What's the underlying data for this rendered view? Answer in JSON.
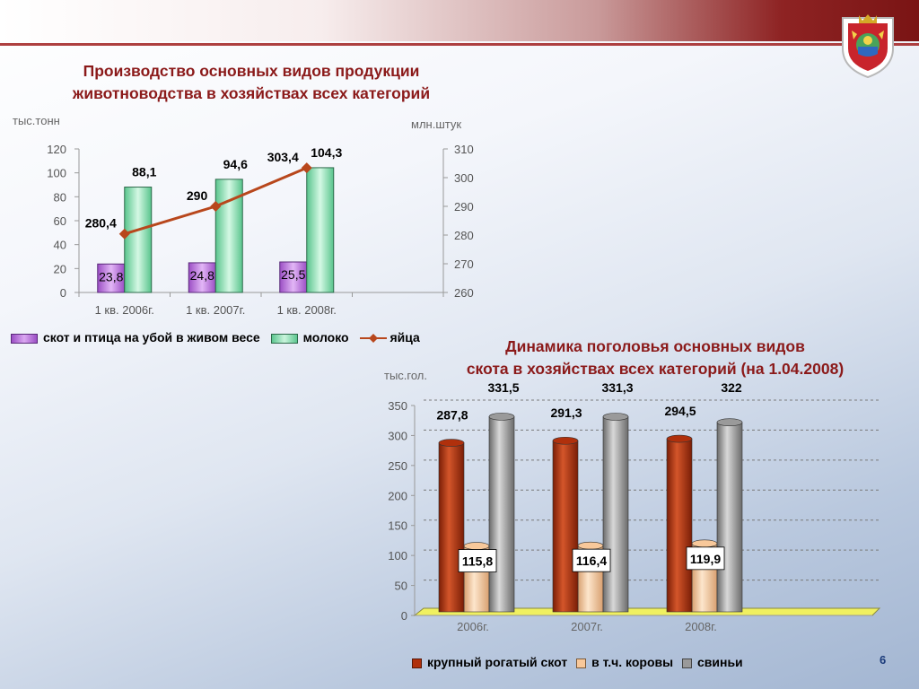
{
  "slide": {
    "page_number": "6"
  },
  "chart_data": [
    {
      "type": "bar",
      "title": "Производство основных видов продукции животноводства в хозяйствах всех категорий",
      "title_lines": [
        "Производство основных видов продукции",
        "животноводства в хозяйствах всех категорий"
      ],
      "ylabel": "тыс.тонн",
      "y2label": "млн.штук",
      "categories": [
        "1 кв. 2006г.",
        "1 кв.  2007г.",
        "1 кв. 2008г."
      ],
      "ylim": [
        0,
        120
      ],
      "yticks": [
        0,
        20,
        40,
        60,
        80,
        100,
        120
      ],
      "y2lim": [
        260,
        310
      ],
      "y2ticks": [
        260,
        270,
        280,
        290,
        300,
        310
      ],
      "series": [
        {
          "name": "скот и птица на убой в живом весе",
          "kind": "bar",
          "axis": "left",
          "color": "#b56fd8",
          "values": [
            23.8,
            24.8,
            25.5
          ],
          "labels": [
            "23,8",
            "24,8",
            "25,5"
          ]
        },
        {
          "name": "молоко",
          "kind": "bar",
          "axis": "left",
          "color": "#8fe0b5",
          "values": [
            88.1,
            94.6,
            104.3
          ],
          "labels": [
            "88,1",
            "94,6",
            "104,3"
          ]
        },
        {
          "name": "яйца",
          "kind": "line",
          "axis": "right",
          "color": "#b8471c",
          "values": [
            280.4,
            290,
            303.4
          ],
          "labels": [
            "280,4",
            "290",
            "303,4"
          ]
        }
      ],
      "legend_position": "bottom"
    },
    {
      "type": "bar",
      "title": "Динамика поголовья основных видов скота в хозяйствах всех категорий (на 1.04.2008)",
      "title_lines": [
        "Динамика поголовья основных видов",
        "скота в хозяйствах всех категорий (на 1.04.2008)"
      ],
      "ylabel": "тыс.гол.",
      "categories": [
        "2006г.",
        "2007г.",
        "2008г."
      ],
      "ylim": [
        0,
        350
      ],
      "yticks": [
        0,
        50,
        100,
        150,
        200,
        250,
        300,
        350
      ],
      "grid": true,
      "series": [
        {
          "name": "крупный рогатый скот",
          "color": "#b0300c",
          "values": [
            287.8,
            291.3,
            294.5
          ],
          "labels": [
            "287,8",
            "291,3",
            "294,5"
          ]
        },
        {
          "name": "в т.ч. коровы",
          "color": "#f8c89a",
          "values": [
            115.8,
            116.4,
            119.9
          ],
          "labels": [
            "115,8",
            "116,4",
            "119,9"
          ]
        },
        {
          "name": "свиньи",
          "color": "#9a9a9a",
          "values": [
            331.5,
            331.3,
            322
          ],
          "labels": [
            "331,5",
            "331,3",
            "322"
          ]
        }
      ],
      "legend_position": "bottom"
    }
  ]
}
